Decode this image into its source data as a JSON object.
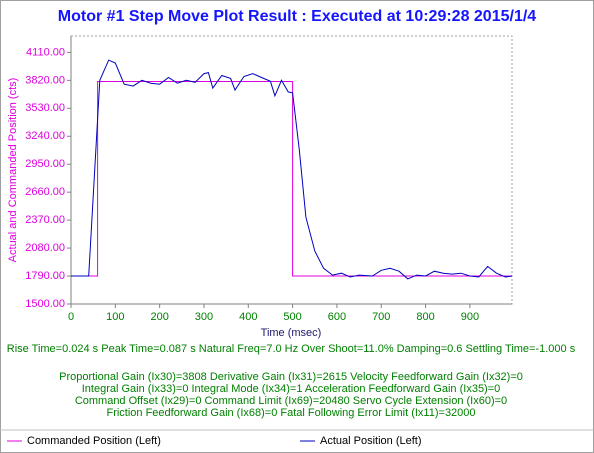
{
  "chart_data": {
    "type": "line",
    "title": "Motor #1 Step Move Plot Result : Executed at 10:29:28 2015/1/4",
    "x_label": "Time (msec)",
    "y_label": "Actual and Commanded Position (cts)",
    "xlim": [
      0,
      995
    ],
    "xticks": [
      0,
      100,
      200,
      300,
      400,
      500,
      600,
      700,
      800,
      900
    ],
    "ylim": [
      1500,
      4280
    ],
    "yticks": [
      {
        "value": 1500,
        "label": "1500.00"
      },
      {
        "value": 1790,
        "label": "1790.00"
      },
      {
        "value": 2080,
        "label": "2080.00"
      },
      {
        "value": 2370,
        "label": "2370.00"
      },
      {
        "value": 2660,
        "label": "2660.00"
      },
      {
        "value": 2950,
        "label": "2950.00"
      },
      {
        "value": 3240,
        "label": "3240.00"
      },
      {
        "value": 3530,
        "label": "3530.00"
      },
      {
        "value": 3820,
        "label": "3820.00"
      },
      {
        "value": 4110,
        "label": "4110.00"
      }
    ],
    "grid": false,
    "series": [
      {
        "name": "Commanded Position (Left)",
        "color": "#e000e0",
        "x": [
          0,
          60,
          60,
          500,
          500,
          995
        ],
        "values": [
          1790,
          1790,
          3808,
          3808,
          1790,
          1790
        ]
      },
      {
        "name": "Actual Position (Left)",
        "color": "#0000c0",
        "x": [
          0,
          40,
          65,
          85,
          100,
          120,
          140,
          160,
          180,
          200,
          220,
          240,
          260,
          280,
          300,
          310,
          320,
          340,
          360,
          370,
          390,
          410,
          430,
          450,
          460,
          475,
          490,
          500,
          515,
          530,
          550,
          570,
          590,
          610,
          630,
          650,
          680,
          700,
          720,
          740,
          760,
          780,
          800,
          820,
          840,
          860,
          880,
          900,
          920,
          940,
          960,
          980,
          995
        ],
        "values": [
          1790,
          1790,
          3820,
          4030,
          4000,
          3780,
          3760,
          3820,
          3790,
          3780,
          3850,
          3790,
          3820,
          3800,
          3890,
          3900,
          3740,
          3870,
          3840,
          3720,
          3860,
          3890,
          3850,
          3810,
          3660,
          3820,
          3700,
          3690,
          3100,
          2400,
          2050,
          1870,
          1800,
          1820,
          1780,
          1800,
          1790,
          1850,
          1870,
          1840,
          1760,
          1800,
          1790,
          1840,
          1820,
          1810,
          1820,
          1790,
          1780,
          1890,
          1820,
          1780,
          1790
        ]
      }
    ],
    "legend": "bottom",
    "info_lines": [
      "Rise Time=0.024 s   Peak Time=0.087 s  Natural Freq=7.0 Hz  Over Shoot=11.0%  Damping=0.6  Settling Time=-1.000 s",
      "Proportional Gain (Ix30)=3808  Derivative Gain (Ix31)=2615  Velocity Feedforward Gain (Ix32)=0",
      "Integral Gain (Ix33)=0  Integral Mode (Ix34)=1  Acceleration Feedforward Gain (Ix35)=0",
      "Command Offset (Ix29)=0  Command Limit (Ix69)=20480  Servo Cycle Extension (Ix60)=0",
      "Friction Feedforward Gain (Ix68)=0  Fatal Following Error Limit (Ix11)=32000"
    ]
  }
}
